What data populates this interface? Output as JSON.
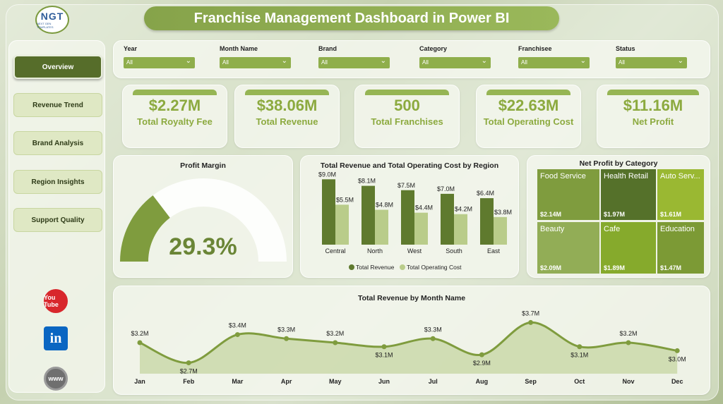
{
  "title": "Franchise Management Dashboard in Power BI",
  "logo": {
    "text": "NGT",
    "subtext": "NEXT GEN TEMPLATES"
  },
  "nav": [
    {
      "label": "Overview",
      "active": true
    },
    {
      "label": "Revenue Trend",
      "active": false
    },
    {
      "label": "Brand Analysis",
      "active": false
    },
    {
      "label": "Region Insights",
      "active": false
    },
    {
      "label": "Support Quality",
      "active": false
    }
  ],
  "social": [
    {
      "icon": "youtube-icon",
      "text": "You Tube",
      "color": "#d8272c"
    },
    {
      "icon": "linkedin-icon",
      "text": "in",
      "color": "#0a66c2"
    },
    {
      "icon": "globe-icon",
      "text": "www",
      "color": "#6f6f6f"
    }
  ],
  "filters": [
    {
      "label": "Year",
      "value": "All"
    },
    {
      "label": "Month Name",
      "value": "All"
    },
    {
      "label": "Brand",
      "value": "All"
    },
    {
      "label": "Category",
      "value": "All"
    },
    {
      "label": "Franchisee",
      "value": "All"
    },
    {
      "label": "Status",
      "value": "All"
    }
  ],
  "kpis": [
    {
      "value": "$2.27M",
      "label": "Total Royalty Fee"
    },
    {
      "value": "$38.06M",
      "label": "Total Revenue"
    },
    {
      "value": "500",
      "label": "Total Franchises"
    },
    {
      "value": "$22.63M",
      "label": "Total Operating Cost"
    },
    {
      "value": "$11.16M",
      "label": "Net Profit"
    }
  ],
  "colors": {
    "accent": "#8caa3f",
    "dark": "#5f7a2e",
    "light": "#b9cc8a"
  },
  "chart_data": [
    {
      "type": "gauge",
      "title": "Profit Margin",
      "value": 29.3,
      "value_label": "29.3%",
      "range": [
        0,
        100
      ]
    },
    {
      "type": "bar",
      "title": "Total Revenue and Total Operating Cost by Region",
      "categories": [
        "Central",
        "North",
        "West",
        "South",
        "East"
      ],
      "series": [
        {
          "name": "Total Revenue",
          "values": [
            9.0,
            8.1,
            7.5,
            7.0,
            6.4
          ],
          "labels": [
            "$9.0M",
            "$8.1M",
            "$7.5M",
            "$7.0M",
            "$6.4M"
          ],
          "color": "#5f7a2e"
        },
        {
          "name": "Total Operating Cost",
          "values": [
            5.5,
            4.8,
            4.4,
            4.2,
            3.8
          ],
          "labels": [
            "$5.5M",
            "$4.8M",
            "$4.4M",
            "$4.2M",
            "$3.8M"
          ],
          "color": "#b9cc8a"
        }
      ],
      "legend": "bottom"
    },
    {
      "type": "treemap",
      "title": "Net Profit by Category",
      "items": [
        {
          "name": "Food Service",
          "value": 2.14,
          "label": "$2.14M",
          "color": "#7f9c3e"
        },
        {
          "name": "Health Retail",
          "value": 1.97,
          "label": "$1.97M",
          "color": "#55712a"
        },
        {
          "name": "Auto Serv...",
          "value": 1.61,
          "label": "$1.61M",
          "color": "#9ab832"
        },
        {
          "name": "Beauty",
          "value": 2.09,
          "label": "$2.09M",
          "color": "#92ad56"
        },
        {
          "name": "Cafe",
          "value": 1.89,
          "label": "$1.89M",
          "color": "#86aa2c"
        },
        {
          "name": "Education",
          "value": 1.47,
          "label": "$1.47M",
          "color": "#7c9a35"
        }
      ]
    },
    {
      "type": "area",
      "title": "Total Revenue by Month Name",
      "categories": [
        "Jan",
        "Feb",
        "Mar",
        "Apr",
        "May",
        "Jun",
        "Jul",
        "Aug",
        "Sep",
        "Oct",
        "Nov",
        "Dec"
      ],
      "values": [
        3.2,
        2.7,
        3.4,
        3.3,
        3.2,
        3.1,
        3.3,
        2.9,
        3.7,
        3.1,
        3.2,
        3.0
      ],
      "labels": [
        "$3.2M",
        "$2.7M",
        "$3.4M",
        "$3.3M",
        "$3.2M",
        "$3.1M",
        "$3.3M",
        "$2.9M",
        "$3.7M",
        "$3.1M",
        "$3.2M",
        "$3.0M"
      ]
    }
  ]
}
